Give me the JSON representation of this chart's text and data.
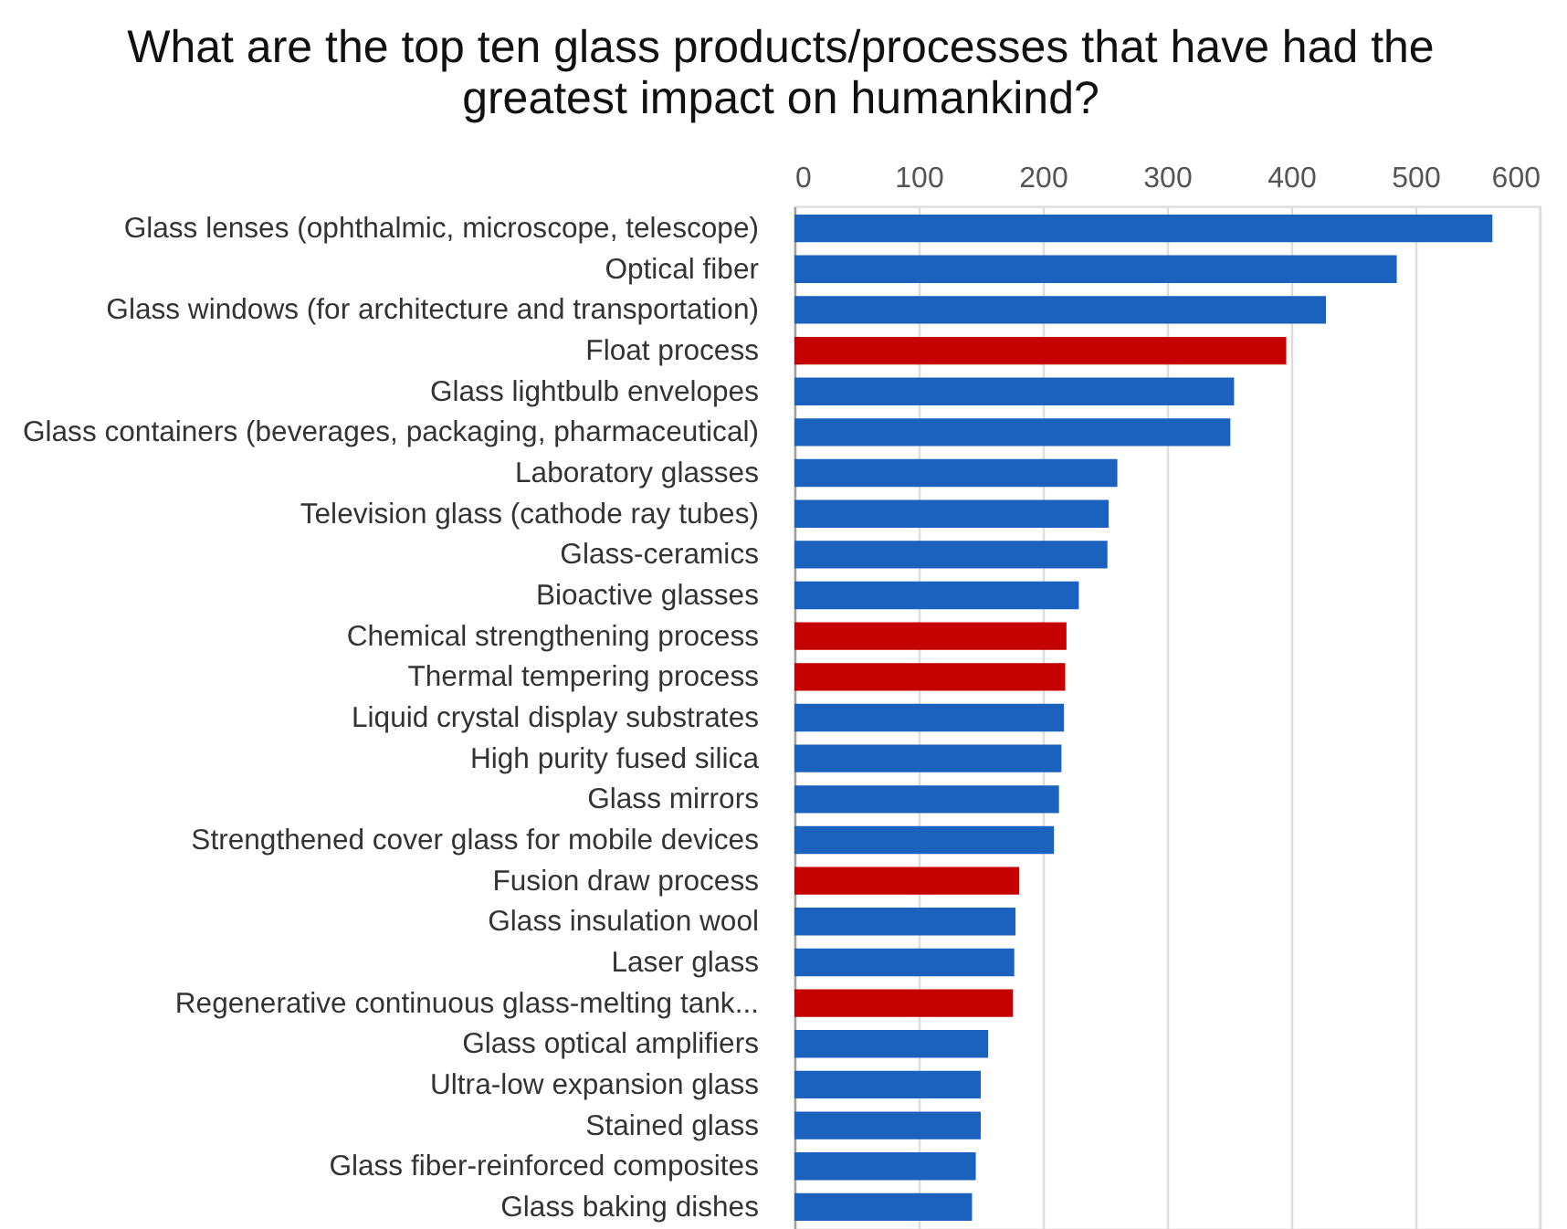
{
  "chart_data": {
    "type": "bar",
    "orientation": "horizontal",
    "title": "What are the top ten glass products/processes that have had the greatest impact on humankind?",
    "categories": [
      "Glass lenses (ophthalmic, microscope, telescope)",
      "Optical fiber",
      "Glass windows (for architecture and transportation)",
      "Float process",
      "Glass lightbulb envelopes",
      "Glass containers (beverages, packaging, pharmaceutical)",
      "Laboratory glasses",
      "Television glass (cathode ray tubes)",
      "Glass-ceramics",
      "Bioactive glasses",
      "Chemical strengthening process",
      "Thermal tempering process",
      "Liquid crystal display substrates",
      "High purity fused silica",
      "Glass mirrors",
      "Strengthened cover glass for mobile devices",
      "Fusion draw process",
      "Glass insulation wool",
      "Laser glass",
      "Regenerative continuous glass-melting tank...",
      "Glass optical amplifiers",
      "Ultra-low expansion glass",
      "Stained glass",
      "Glass fiber-reinforced composites",
      "Glass baking dishes"
    ],
    "values": [
      562,
      485,
      428,
      396,
      354,
      351,
      260,
      253,
      252,
      229,
      219,
      218,
      217,
      215,
      213,
      209,
      181,
      178,
      177,
      176,
      156,
      150,
      150,
      146,
      143
    ],
    "colors": [
      "#1a62be",
      "#1a62be",
      "#1a62be",
      "#c40000",
      "#1a62be",
      "#1a62be",
      "#1a62be",
      "#1a62be",
      "#1a62be",
      "#1a62be",
      "#c40000",
      "#c40000",
      "#1a62be",
      "#1a62be",
      "#1a62be",
      "#1a62be",
      "#c40000",
      "#1a62be",
      "#1a62be",
      "#c40000",
      "#1a62be",
      "#1a62be",
      "#1a62be",
      "#1a62be",
      "#1a62be"
    ],
    "xlim": [
      0,
      600
    ],
    "xticks": [
      0,
      100,
      200,
      300,
      400,
      500,
      600
    ],
    "grid": "x"
  }
}
